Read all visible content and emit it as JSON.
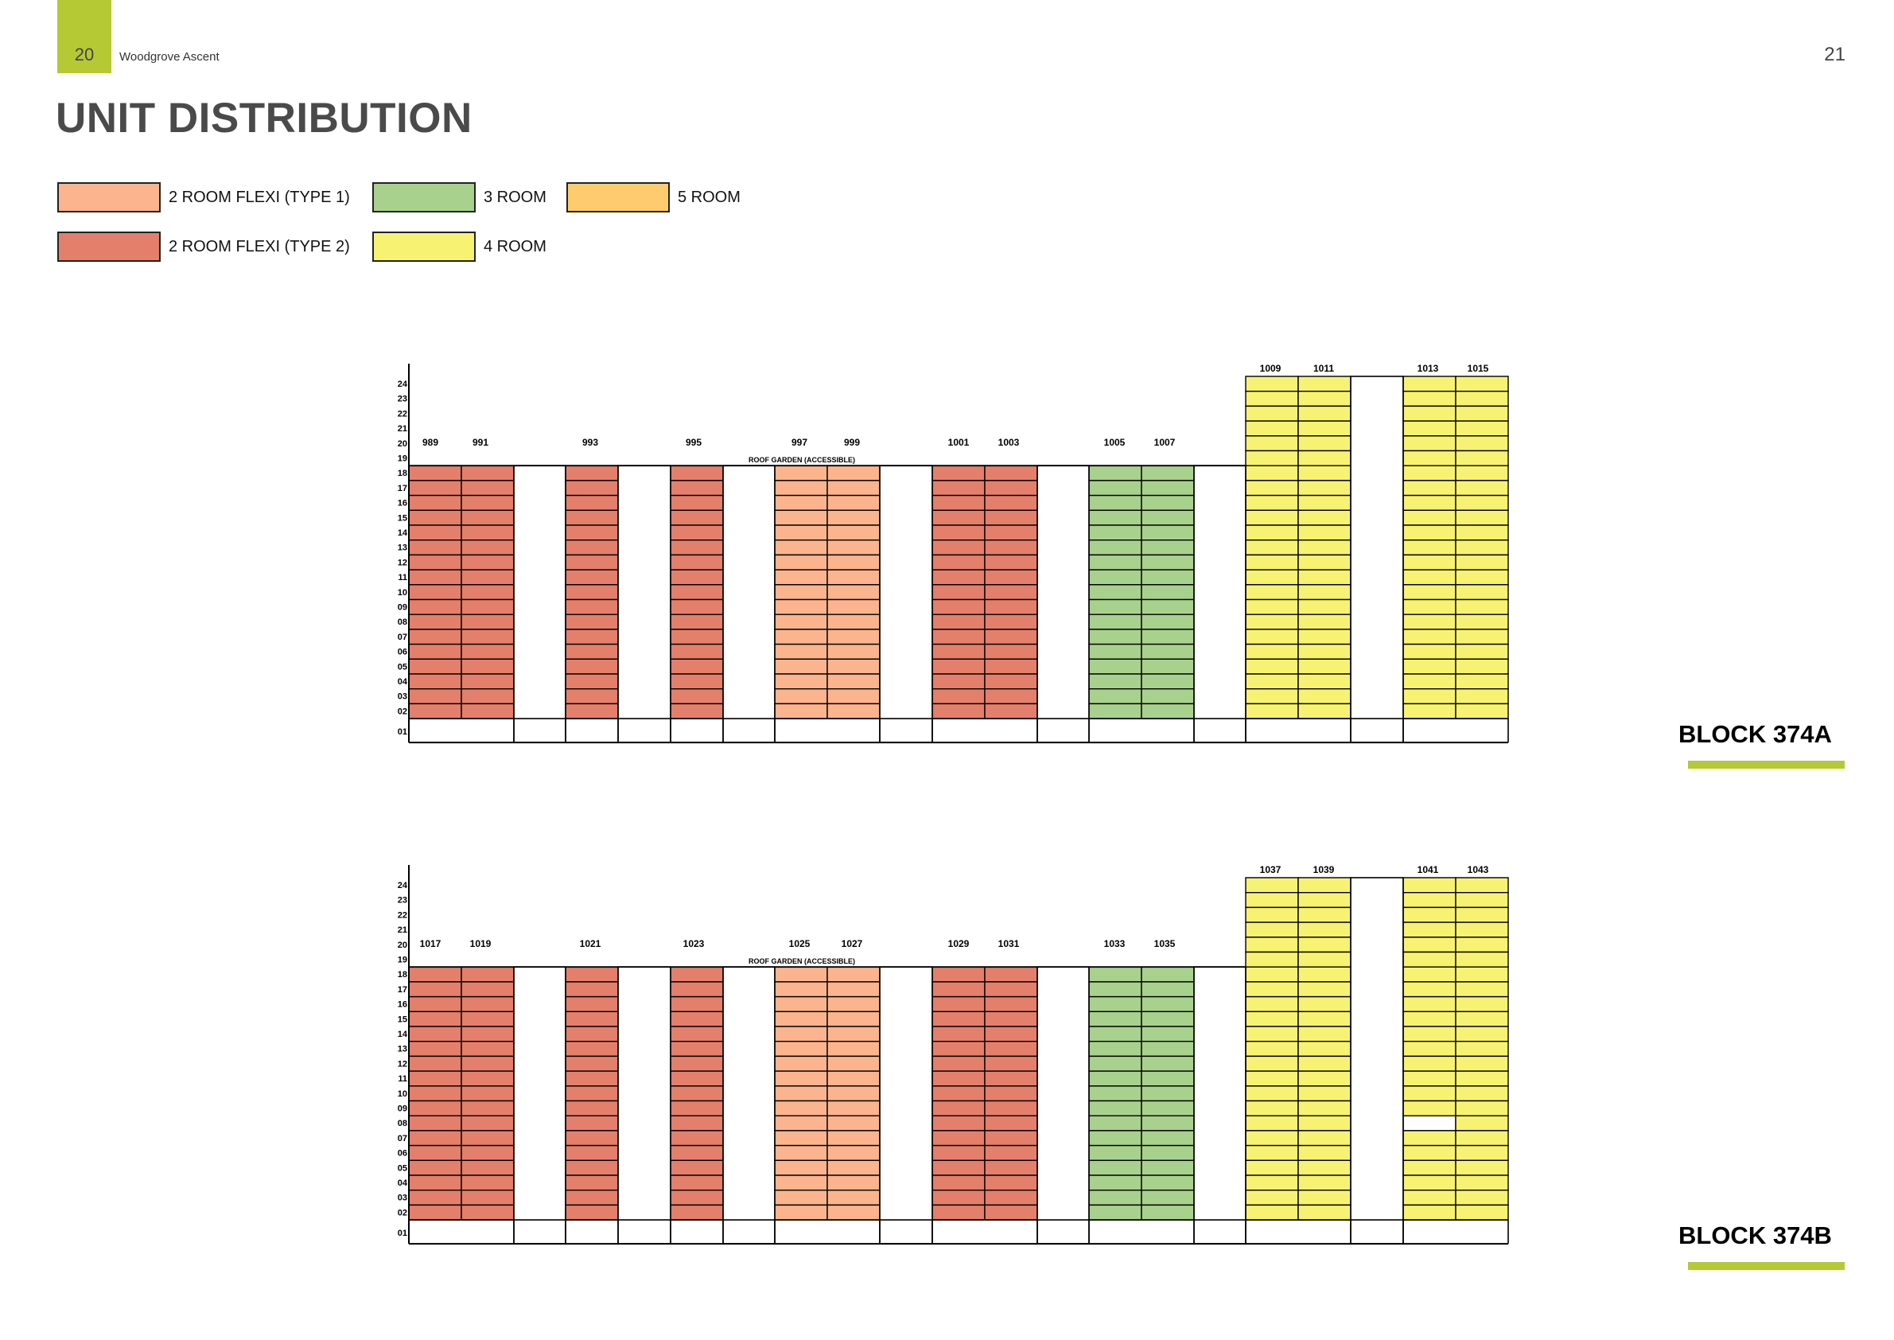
{
  "header": {
    "left_page": "20",
    "doc_title": "Woodgrove Ascent",
    "right_page": "21"
  },
  "heading": "UNIT DISTRIBUTION",
  "legend": [
    {
      "label": "2  ROOM FLEXI (TYPE 1)",
      "color": "#fbb48e"
    },
    {
      "label": "3 ROOM",
      "color": "#a9d18e"
    },
    {
      "label": "5 ROOM",
      "color": "#fecb6e"
    },
    {
      "label": "2  ROOM FLEXI (TYPE 2)",
      "color": "#e47f6c"
    },
    {
      "label": "4 ROOM",
      "color": "#f8f273"
    }
  ],
  "floors": [
    "24",
    "23",
    "22",
    "21",
    "20",
    "19",
    "18",
    "17",
    "16",
    "15",
    "14",
    "13",
    "12",
    "11",
    "10",
    "09",
    "08",
    "07",
    "06",
    "05",
    "04",
    "03",
    "02",
    "01"
  ],
  "roof_garden_label": "ROOF GARDEN (ACCESSIBLE)",
  "blocks": [
    {
      "name": "BLOCK 374A",
      "tall_labels": [
        "1009",
        "1011",
        "1013",
        "1015"
      ],
      "low_labels": [
        "989",
        "991",
        "993",
        "995",
        "997",
        "999",
        "1001",
        "1003",
        "1005",
        "1007"
      ]
    },
    {
      "name": "BLOCK 374B",
      "tall_labels": [
        "1037",
        "1039",
        "1041",
        "1043"
      ],
      "low_labels": [
        "1017",
        "1019",
        "1021",
        "1023",
        "1025",
        "1027",
        "1029",
        "1031",
        "1033",
        "1035"
      ]
    }
  ]
}
